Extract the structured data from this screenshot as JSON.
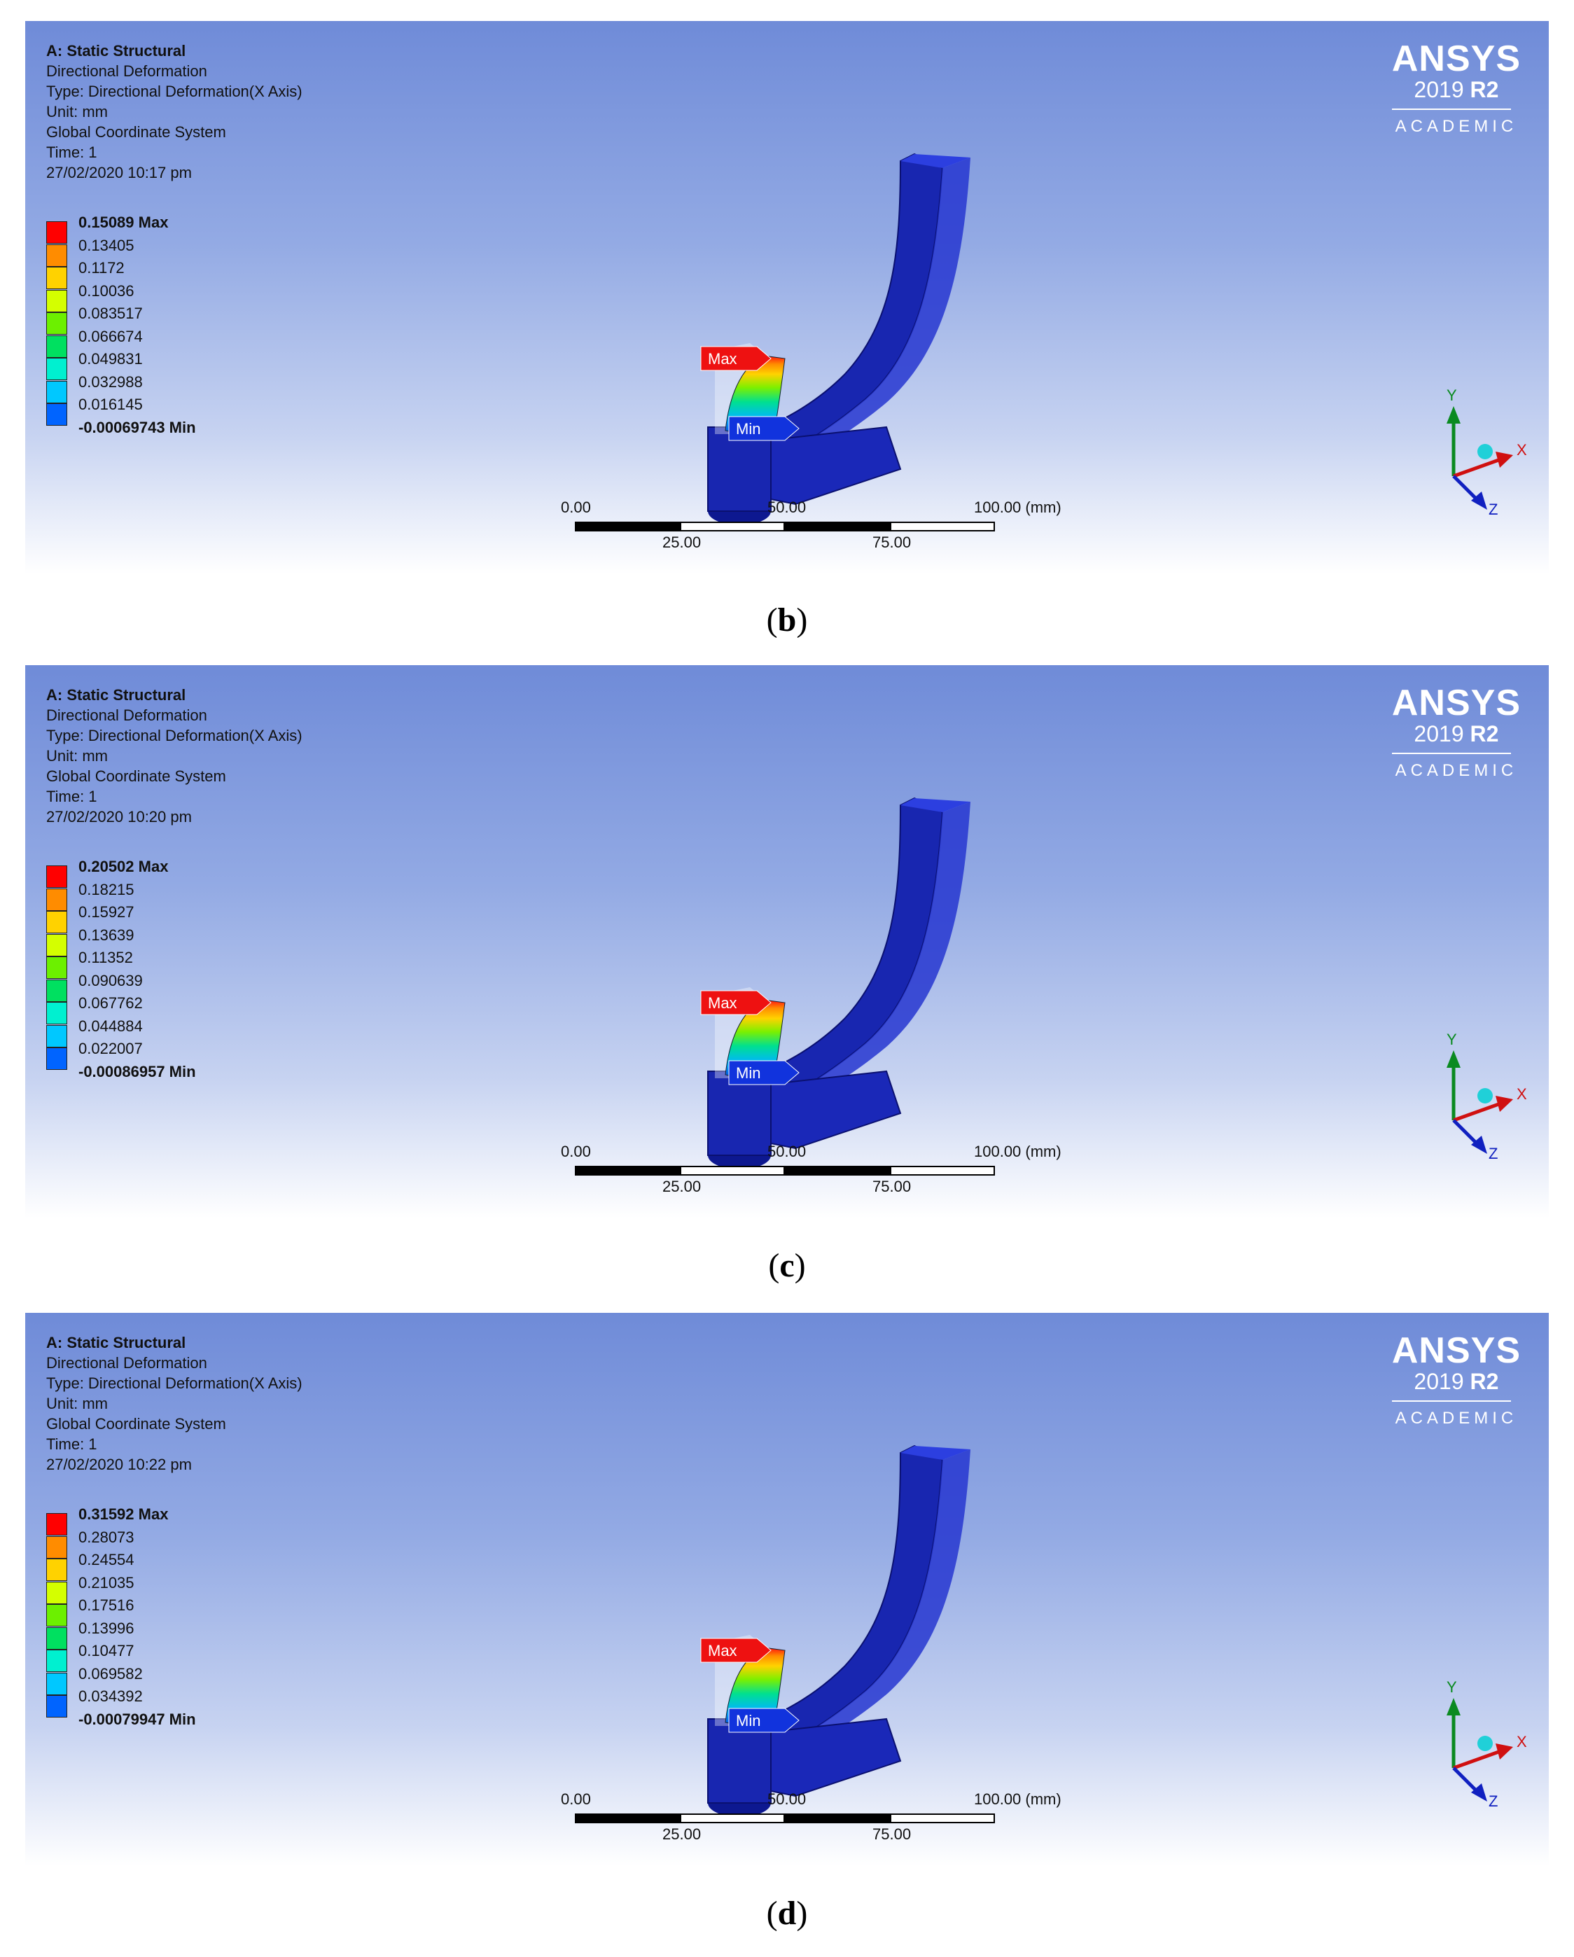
{
  "panels": [
    {
      "caption": "b",
      "header": {
        "title": "A: Static Structural",
        "result": "Directional Deformation",
        "type": "Type: Directional Deformation(X Axis)",
        "unit": "Unit: mm",
        "coord": "Global Coordinate System",
        "time": "Time: 1",
        "date": "27/02/2020 10:17 pm"
      },
      "legend": [
        "0.15089 Max",
        "0.13405",
        "0.1172",
        "0.10036",
        "0.083517",
        "0.066674",
        "0.049831",
        "0.032988",
        "0.016145",
        "-0.00069743 Min"
      ],
      "max_label": "Max",
      "min_label": "Min",
      "scale": {
        "t0": "0.00",
        "t25": "25.00",
        "t50": "50.00",
        "t75": "75.00",
        "t100": "100.00 (mm)"
      }
    },
    {
      "caption": "c",
      "header": {
        "title": "A: Static Structural",
        "result": "Directional Deformation",
        "type": "Type: Directional Deformation(X Axis)",
        "unit": "Unit: mm",
        "coord": "Global Coordinate System",
        "time": "Time: 1",
        "date": "27/02/2020 10:20 pm"
      },
      "legend": [
        "0.20502 Max",
        "0.18215",
        "0.15927",
        "0.13639",
        "0.11352",
        "0.090639",
        "0.067762",
        "0.044884",
        "0.022007",
        "-0.00086957 Min"
      ],
      "max_label": "Max",
      "min_label": "Min",
      "scale": {
        "t0": "0.00",
        "t25": "25.00",
        "t50": "50.00",
        "t75": "75.00",
        "t100": "100.00 (mm)"
      }
    },
    {
      "caption": "d",
      "header": {
        "title": "A: Static Structural",
        "result": "Directional Deformation",
        "type": "Type: Directional Deformation(X Axis)",
        "unit": "Unit: mm",
        "coord": "Global Coordinate System",
        "time": "Time: 1",
        "date": "27/02/2020 10:22 pm"
      },
      "legend": [
        "0.31592 Max",
        "0.28073",
        "0.24554",
        "0.21035",
        "0.17516",
        "0.13996",
        "0.10477",
        "0.069582",
        "0.034392",
        "-0.00079947 Min"
      ],
      "max_label": "Max",
      "min_label": "Min",
      "scale": {
        "t0": "0.00",
        "t25": "25.00",
        "t50": "50.00",
        "t75": "75.00",
        "t100": "100.00 (mm)"
      }
    }
  ],
  "logo": {
    "name": "ANSYS",
    "version": "2019",
    "release": "R2",
    "edition": "ACADEMIC"
  },
  "triad": {
    "x": "X",
    "y": "Y",
    "z": "Z"
  },
  "colors": {
    "legend_bands": [
      "#ff0000",
      "#ff8c00",
      "#ffd200",
      "#d4ff00",
      "#6cf000",
      "#00e060",
      "#00f0d0",
      "#00c8ff",
      "#0064ff",
      "#0000ff"
    ],
    "max_tag": "#ee1111",
    "min_tag": "#1133dd",
    "model_blue": "#1826b0"
  }
}
